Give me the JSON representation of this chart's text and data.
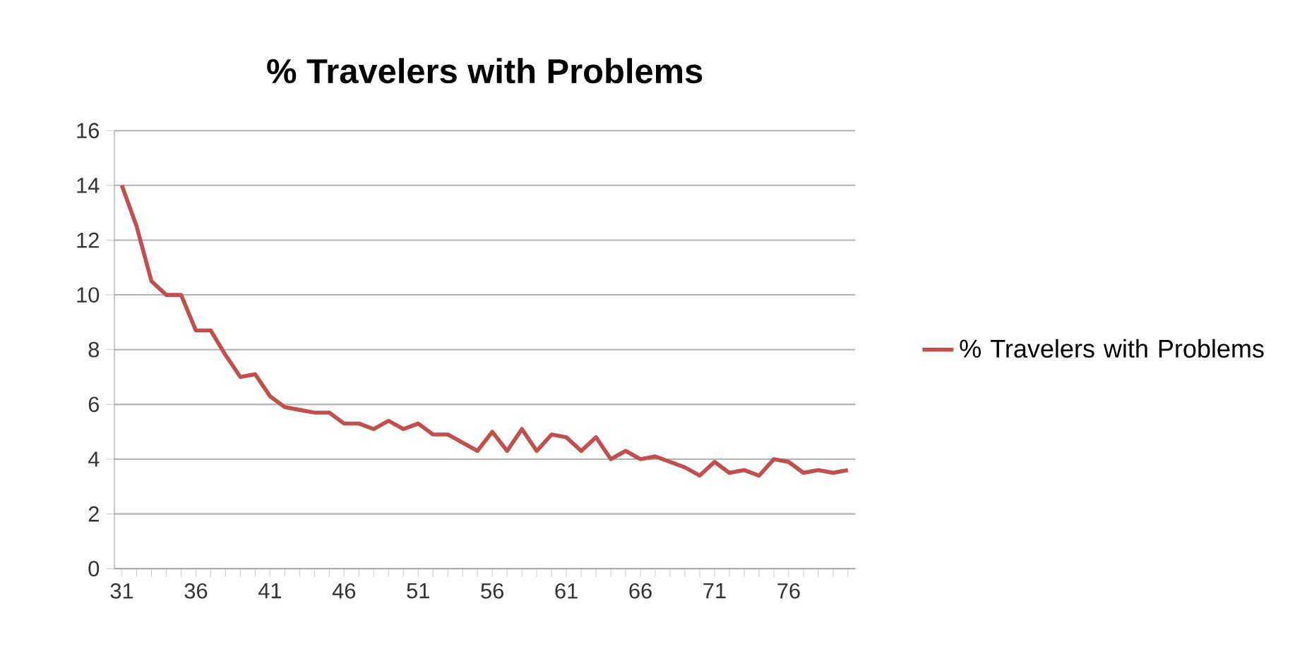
{
  "chart_data": {
    "type": "line",
    "title": "% Travelers with Problems",
    "categories": [
      "31",
      null,
      null,
      null,
      null,
      "36",
      null,
      null,
      null,
      null,
      "41",
      null,
      null,
      null,
      null,
      "46",
      null,
      null,
      null,
      null,
      "51",
      null,
      null,
      null,
      null,
      "56",
      null,
      null,
      null,
      null,
      "61",
      null,
      null,
      null,
      null,
      "66",
      null,
      null,
      null,
      null,
      "71",
      null,
      null,
      null,
      null,
      "76",
      null,
      null,
      null,
      null
    ],
    "series": [
      {
        "name": "% Travelers with Problems",
        "color": "#c0504d",
        "values": [
          14,
          12.5,
          10.5,
          10,
          10,
          8.7,
          8.7,
          7.8,
          7,
          7.1,
          6.3,
          5.9,
          5.8,
          5.7,
          5.7,
          5.3,
          5.3,
          5.1,
          5.4,
          5.1,
          5.3,
          4.9,
          4.9,
          4.6,
          4.3,
          5.0,
          4.3,
          5.1,
          4.3,
          4.9,
          4.8,
          4.3,
          4.8,
          4.0,
          4.3,
          4.0,
          4.1,
          3.9,
          3.7,
          3.4,
          3.9,
          3.5,
          3.6,
          3.4,
          4.0,
          3.9,
          3.5,
          3.6,
          3.5,
          3.6
        ]
      }
    ],
    "ylim": [
      0,
      16
    ],
    "yticks": [
      0,
      2,
      4,
      6,
      8,
      10,
      12,
      14,
      16
    ],
    "grid": "y",
    "legend": "right",
    "marker": "none",
    "line_style": "solid"
  }
}
